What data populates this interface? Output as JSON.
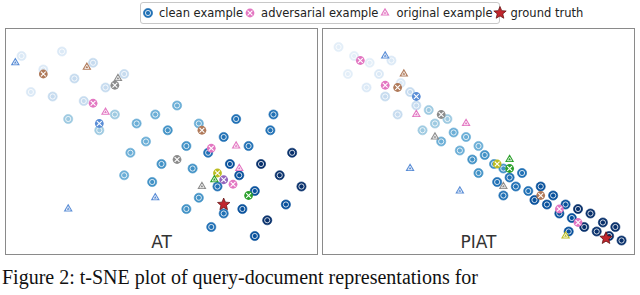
{
  "caption": "Figure 2: t-SNE plot of query-document representations for",
  "legend": "top",
  "chart_data": [
    {
      "type": "scatter",
      "title": "AT",
      "tick_labels": false,
      "xlim": [
        0,
        100
      ],
      "ylim": [
        0,
        100
      ],
      "series": [
        {
          "name": "clean example",
          "marker": "circle",
          "color": "#2171b5",
          "x": [
            5,
            12,
            18,
            22,
            28,
            15,
            25,
            32,
            8,
            35,
            20,
            38,
            30,
            42,
            48,
            45,
            52,
            40,
            55,
            58,
            50,
            62,
            47,
            38,
            60,
            65,
            70,
            72,
            68,
            75,
            78,
            80,
            82,
            85,
            88,
            90,
            92,
            76,
            70,
            84,
            95,
            62,
            66,
            86,
            58,
            74,
            80
          ],
          "y": [
            88,
            82,
            90,
            78,
            85,
            70,
            68,
            74,
            72,
            62,
            60,
            80,
            55,
            58,
            62,
            50,
            55,
            45,
            66,
            48,
            40,
            58,
            32,
            35,
            38,
            45,
            52,
            40,
            30,
            35,
            48,
            28,
            40,
            55,
            35,
            22,
            45,
            20,
            18,
            15,
            30,
            25,
            12,
            62,
            20,
            60,
            8
          ],
          "colors": [
            "#dbe9f6",
            "#dbe9f6",
            "#dbe9f6",
            "#c6dbef",
            "#c6dbef",
            "#c6dbef",
            "#c6dbef",
            "#c6dbef",
            "#dbe9f6",
            "#9ecae1",
            "#9ecae1",
            "#c6dbef",
            "#9ecae1",
            "#6baed6",
            "#6baed6",
            "#6baed6",
            "#4292c6",
            "#6baed6",
            "#6baed6",
            "#4292c6",
            "#4292c6",
            "#6baed6",
            "#4292c6",
            "#6baed6",
            "#4292c6",
            "#2171b5",
            "#2171b5",
            "#08519c",
            "#2171b5",
            "#08519c",
            "#2171b5",
            "#08519c",
            "#08306b",
            "#2171b5",
            "#08306b",
            "#08519c",
            "#08306b",
            "#08519c",
            "#2171b5",
            "#08306b",
            "#08306b",
            "#4292c6",
            "#2171b5",
            "#2171b5",
            "#4292c6",
            "#2171b5",
            "#08519c"
          ]
        },
        {
          "name": "adversarial example",
          "marker": "x",
          "color": "#e377c2",
          "x": [
            12,
            28,
            35,
            63,
            66,
            70,
            73,
            55,
            78,
            68,
            30
          ],
          "y": [
            80,
            67,
            75,
            55,
            47,
            33,
            31,
            42,
            26,
            36,
            58
          ],
          "colors": [
            "#b07a5a",
            "#e377c2",
            "#8c8c8c",
            "#b07a5a",
            "#e377c2",
            "#9467bd",
            "#e377c2",
            "#8c8c8c",
            "#2ca02c",
            "#bcbd22",
            "#5a8dd6"
          ]
        },
        {
          "name": "original example",
          "marker": "triangle",
          "color": "#e377c2",
          "x": [
            3,
            26,
            36,
            32,
            67,
            75,
            74,
            48,
            20,
            63
          ],
          "y": [
            85,
            83,
            78,
            63,
            33,
            38,
            48,
            25,
            20,
            30
          ],
          "colors": [
            "#5a8dd6",
            "#b07a5a",
            "#8c8c8c",
            "#e377c2",
            "#2ca02c",
            "#e377c2",
            "#e377c2",
            "#5a8dd6",
            "#5a8dd6",
            "#8c8c8c"
          ]
        },
        {
          "name": "ground truth",
          "marker": "star",
          "color": "#c0262d",
          "x": [
            70
          ],
          "y": [
            22
          ]
        }
      ]
    },
    {
      "type": "scatter",
      "title": "PIAT",
      "tick_labels": false,
      "xlim": [
        0,
        100
      ],
      "ylim": [
        0,
        100
      ],
      "series": [
        {
          "name": "clean example",
          "marker": "circle",
          "color": "#2171b5",
          "x": [
            5,
            10,
            15,
            8,
            18,
            22,
            25,
            14,
            20,
            28,
            30,
            24,
            34,
            36,
            40,
            32,
            42,
            38,
            46,
            44,
            50,
            48,
            52,
            55,
            50,
            58,
            56,
            60,
            62,
            64,
            66,
            58,
            68,
            70,
            72,
            74,
            76,
            78,
            80,
            82,
            84,
            86,
            88,
            90,
            92,
            94,
            79,
            96
          ],
          "y": [
            92,
            88,
            85,
            80,
            80,
            86,
            76,
            74,
            70,
            72,
            66,
            62,
            64,
            58,
            60,
            55,
            54,
            50,
            52,
            46,
            48,
            42,
            44,
            40,
            36,
            38,
            32,
            34,
            30,
            36,
            28,
            26,
            24,
            30,
            22,
            26,
            18,
            22,
            16,
            20,
            12,
            18,
            10,
            14,
            8,
            12,
            10,
            6
          ],
          "colors": [
            "#e3eef8",
            "#e3eef8",
            "#e3eef8",
            "#e3eef8",
            "#dbe9f6",
            "#dbe9f6",
            "#dbe9f6",
            "#dbe9f6",
            "#c6dbef",
            "#c6dbef",
            "#c6dbef",
            "#c6dbef",
            "#9ecae1",
            "#9ecae1",
            "#9ecae1",
            "#9ecae1",
            "#6baed6",
            "#6baed6",
            "#6baed6",
            "#6baed6",
            "#6baed6",
            "#4292c6",
            "#4292c6",
            "#4292c6",
            "#4292c6",
            "#4292c6",
            "#2171b5",
            "#2171b5",
            "#2171b5",
            "#2171b5",
            "#2171b5",
            "#2171b5",
            "#08519c",
            "#08519c",
            "#08519c",
            "#08519c",
            "#08519c",
            "#08519c",
            "#08519c",
            "#08306b",
            "#08306b",
            "#08306b",
            "#08306b",
            "#08306b",
            "#08306b",
            "#08306b",
            "#08519c",
            "#08306b"
          ]
        },
        {
          "name": "adversarial example",
          "marker": "x",
          "color": "#e377c2",
          "x": [
            12,
            20,
            30,
            24,
            38,
            56,
            60,
            76,
            82,
            70
          ],
          "y": [
            86,
            75,
            70,
            74,
            62,
            40,
            38,
            20,
            14,
            26
          ],
          "colors": [
            "#e377c2",
            "#e377c2",
            "#5a8dd6",
            "#b07a5a",
            "#8c8c8c",
            "#bcbd22",
            "#2ca02c",
            "#e377c2",
            "#e377c2",
            "#b07a5a"
          ]
        },
        {
          "name": "original example",
          "marker": "triangle",
          "color": "#e377c2",
          "x": [
            20,
            26,
            30,
            36,
            46,
            28,
            44,
            60,
            78,
            58
          ],
          "y": [
            88,
            80,
            62,
            52,
            58,
            38,
            28,
            42,
            8,
            30
          ],
          "colors": [
            "#5a8dd6",
            "#b07a5a",
            "#e377c2",
            "#8c8c8c",
            "#e377c2",
            "#5a8dd6",
            "#5a8dd6",
            "#2ca02c",
            "#bcbd22",
            "#8c8c8c"
          ]
        },
        {
          "name": "ground truth",
          "marker": "star",
          "color": "#c0262d",
          "x": [
            91
          ],
          "y": [
            7
          ]
        }
      ]
    }
  ]
}
